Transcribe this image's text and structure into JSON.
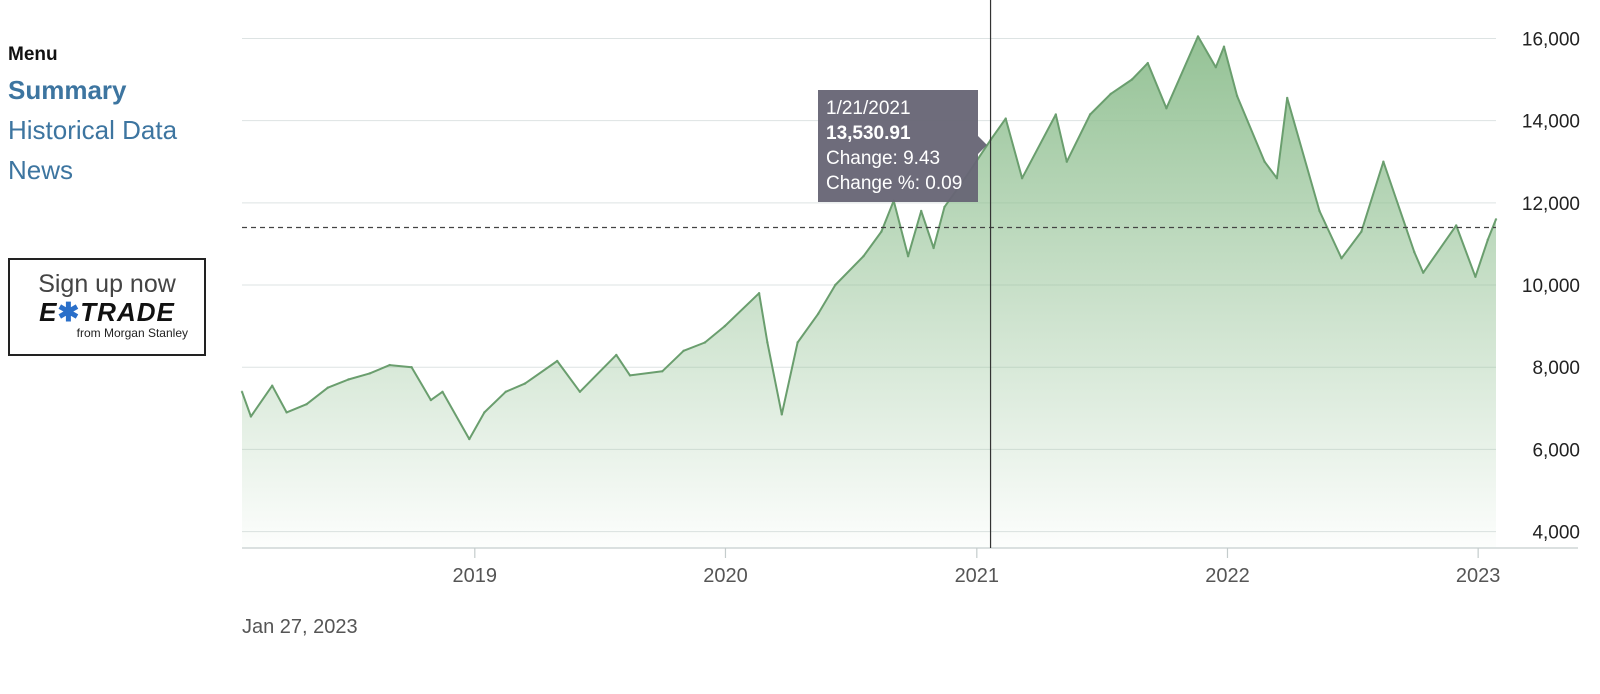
{
  "sidebar": {
    "menu_heading": "Menu",
    "items": [
      {
        "label": "Summary",
        "active": true
      },
      {
        "label": "Historical Data",
        "active": false
      },
      {
        "label": "News",
        "active": false
      }
    ]
  },
  "ad": {
    "cta": "Sign up now",
    "logo_left": "E",
    "logo_right": "TRADE",
    "tagline": "from Morgan Stanley"
  },
  "footer": {
    "date": "Jan 27, 2023"
  },
  "tooltip": {
    "date": "1/21/2021",
    "value": "13,530.91",
    "change": "Change: 9.43",
    "change_pct": "Change %: 0.09"
  },
  "colors": {
    "line": "#6a9e6e",
    "area_top": "#8fbf90",
    "menu_link": "#3d75a0"
  },
  "chart_data": {
    "type": "area",
    "y_ticks": [
      4000,
      6000,
      8000,
      10000,
      12000,
      14000,
      16000
    ],
    "y_tick_labels": [
      "4,000",
      "6,000",
      "8,000",
      "10,000",
      "12,000",
      "14,000",
      "16,000"
    ],
    "ylim": [
      3600,
      16400
    ],
    "xlim": [
      "2018-01-27",
      "2023-01-27"
    ],
    "x_ticks": [
      "2019-01-01",
      "2020-01-01",
      "2021-01-01",
      "2022-01-01",
      "2023-01-01"
    ],
    "x_tick_labels": [
      "2019",
      "2020",
      "2021",
      "2022",
      "2023"
    ],
    "reference_line": 11400,
    "crosshair_date": "2021-01-21",
    "grid": true,
    "series": [
      {
        "points": [
          [
            "2018-01-27",
            7400
          ],
          [
            "2018-02-09",
            6800
          ],
          [
            "2018-03-12",
            7550
          ],
          [
            "2018-04-02",
            6900
          ],
          [
            "2018-05-01",
            7100
          ],
          [
            "2018-06-01",
            7500
          ],
          [
            "2018-07-01",
            7700
          ],
          [
            "2018-08-01",
            7850
          ],
          [
            "2018-08-30",
            8050
          ],
          [
            "2018-10-01",
            8000
          ],
          [
            "2018-10-29",
            7200
          ],
          [
            "2018-11-15",
            7400
          ],
          [
            "2018-12-24",
            6250
          ],
          [
            "2019-01-15",
            6900
          ],
          [
            "2019-02-15",
            7400
          ],
          [
            "2019-03-15",
            7600
          ],
          [
            "2019-05-01",
            8150
          ],
          [
            "2019-06-03",
            7400
          ],
          [
            "2019-07-26",
            8300
          ],
          [
            "2019-08-15",
            7800
          ],
          [
            "2019-10-01",
            7900
          ],
          [
            "2019-11-01",
            8400
          ],
          [
            "2019-12-02",
            8600
          ],
          [
            "2019-12-31",
            9000
          ],
          [
            "2020-02-19",
            9800
          ],
          [
            "2020-03-02",
            8600
          ],
          [
            "2020-03-23",
            6850
          ],
          [
            "2020-04-15",
            8600
          ],
          [
            "2020-05-15",
            9300
          ],
          [
            "2020-06-09",
            10000
          ],
          [
            "2020-07-20",
            10700
          ],
          [
            "2020-08-15",
            11300
          ],
          [
            "2020-09-02",
            12050
          ],
          [
            "2020-09-23",
            10700
          ],
          [
            "2020-10-12",
            11800
          ],
          [
            "2020-10-30",
            10900
          ],
          [
            "2020-11-15",
            11900
          ],
          [
            "2020-12-15",
            12600
          ],
          [
            "2021-01-21",
            13530
          ],
          [
            "2021-02-12",
            14050
          ],
          [
            "2021-03-08",
            12600
          ],
          [
            "2021-04-26",
            14150
          ],
          [
            "2021-05-12",
            13000
          ],
          [
            "2021-06-15",
            14150
          ],
          [
            "2021-07-15",
            14650
          ],
          [
            "2021-08-15",
            15000
          ],
          [
            "2021-09-07",
            15400
          ],
          [
            "2021-10-04",
            14300
          ],
          [
            "2021-11-19",
            16050
          ],
          [
            "2021-12-15",
            15300
          ],
          [
            "2021-12-27",
            15800
          ],
          [
            "2022-01-15",
            14600
          ],
          [
            "2022-02-24",
            13000
          ],
          [
            "2022-03-14",
            12600
          ],
          [
            "2022-03-29",
            14550
          ],
          [
            "2022-05-15",
            11800
          ],
          [
            "2022-06-16",
            10650
          ],
          [
            "2022-07-15",
            11300
          ],
          [
            "2022-08-16",
            13000
          ],
          [
            "2022-09-30",
            10800
          ],
          [
            "2022-10-13",
            10300
          ],
          [
            "2022-11-30",
            11450
          ],
          [
            "2022-12-28",
            10200
          ],
          [
            "2023-01-15",
            11100
          ],
          [
            "2023-01-27",
            11600
          ]
        ]
      }
    ]
  }
}
